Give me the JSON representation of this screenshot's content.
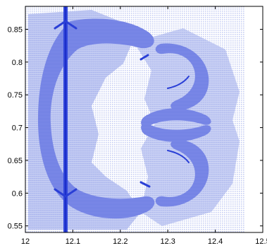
{
  "chart_data": {
    "type": "heatmap",
    "title": "",
    "xlabel": "",
    "ylabel": "",
    "xlim": [
      12.0,
      12.5
    ],
    "ylim": [
      0.54,
      0.885
    ],
    "x_ticks": [
      "12",
      "12.1",
      "12.2",
      "12.3",
      "12.4",
      "12.5"
    ],
    "y_ticks": [
      "0.55",
      "0.6",
      "0.65",
      "0.7",
      "0.75",
      "0.8",
      "0.85"
    ],
    "grid": false,
    "colors": {
      "background": "#ffffff",
      "level_1": "#c8d0f4",
      "level_2": "#a6b1ec",
      "level_3": "#6f7ee4",
      "level_4": "#2a3fd6",
      "axis": "#000000"
    },
    "features": [
      {
        "name": "vertical shock line",
        "x_center": 12.09,
        "y_range": [
          0.54,
          0.885
        ],
        "level": 4
      },
      {
        "name": "outer arc",
        "x_range": [
          12.02,
          12.32
        ],
        "y_range": [
          0.585,
          0.865
        ],
        "level": 3
      },
      {
        "name": "upper bow",
        "x_range": [
          12.21,
          12.34
        ],
        "y_range": [
          0.75,
          0.845
        ],
        "level": 3
      },
      {
        "name": "lower bow",
        "x_range": [
          12.21,
          12.34
        ],
        "y_range": [
          0.585,
          0.68
        ],
        "level": 3
      },
      {
        "name": "upper hook",
        "x_range": [
          12.3,
          12.35
        ],
        "y_range": [
          0.68,
          0.72
        ],
        "level": 3
      },
      {
        "name": "lower hook",
        "x_range": [
          12.3,
          12.35
        ],
        "y_range": [
          0.68,
          0.72
        ],
        "level": 3
      },
      {
        "name": "background haze",
        "x_range": [
          12.0,
          12.49
        ],
        "y_range": [
          0.54,
          0.885
        ],
        "level": 1
      }
    ]
  }
}
